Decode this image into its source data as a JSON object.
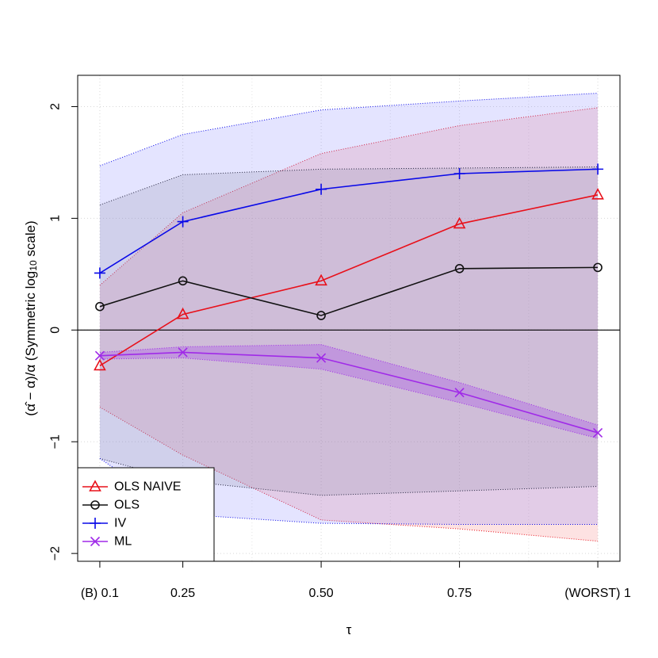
{
  "chart_data": {
    "type": "line",
    "title": "",
    "xlabel": "τ",
    "ylabel": "(α̂ − α)/α (Symmetric log₁₀ scale)",
    "ylabel_parts": {
      "left": "(",
      "alpha_hat": "α̂",
      "mid": " − α)/α (Symmetric log",
      "sub": "10",
      "right": " scale)"
    },
    "x": [
      0.1,
      0.25,
      0.5,
      0.75,
      1
    ],
    "x_tick_labels": [
      "(B) 0.1",
      "0.25",
      "0.50",
      "0.75",
      "(WORST) 1"
    ],
    "y_ticks": [
      -2,
      -1,
      0,
      1,
      2
    ],
    "y_tick_labels": [
      "−2",
      "−1",
      "0",
      "1",
      "2"
    ],
    "xlim": [
      0.06,
      1.04
    ],
    "ylim": [
      -2.07,
      2.28
    ],
    "grid": true,
    "legend_position": "bottom-left",
    "zero_line": true,
    "series": [
      {
        "name": "OLS NAIVE",
        "marker": "triangle",
        "color": "#e8101a",
        "values": [
          -0.32,
          0.14,
          0.44,
          0.95,
          1.21
        ],
        "band_upper": [
          0.4,
          1.05,
          1.58,
          1.83,
          1.99
        ],
        "band_lower": [
          -0.69,
          -1.12,
          -1.7,
          -1.78,
          -1.89
        ],
        "band_fill": "rgba(245,110,110,0.20)"
      },
      {
        "name": "OLS",
        "marker": "circle",
        "color": "#111111",
        "values": [
          0.21,
          0.44,
          0.13,
          0.55,
          0.56
        ],
        "band_upper": [
          1.12,
          1.39,
          1.44,
          1.45,
          1.46
        ],
        "band_lower": [
          -1.15,
          -1.35,
          -1.48,
          -1.44,
          -1.4
        ],
        "band_fill": "rgba(120,120,120,0.18)"
      },
      {
        "name": "IV",
        "marker": "plus",
        "color": "#0a0ae8",
        "values": [
          0.51,
          0.97,
          1.26,
          1.4,
          1.44
        ],
        "band_upper": [
          1.47,
          1.75,
          1.97,
          2.05,
          2.12
        ],
        "band_lower": [
          -1.15,
          -1.65,
          -1.73,
          -1.74,
          -1.74
        ],
        "band_fill": "rgba(120,120,255,0.20)"
      },
      {
        "name": "ML",
        "marker": "x",
        "color": "#a02ae8",
        "values": [
          -0.23,
          -0.2,
          -0.25,
          -0.56,
          -0.92
        ],
        "band_upper": [
          -0.2,
          -0.15,
          -0.13,
          -0.47,
          -0.85
        ],
        "band_lower": [
          -0.26,
          -0.25,
          -0.35,
          -0.65,
          -0.97
        ],
        "band_fill": "rgba(170,90,230,0.38)"
      }
    ]
  }
}
